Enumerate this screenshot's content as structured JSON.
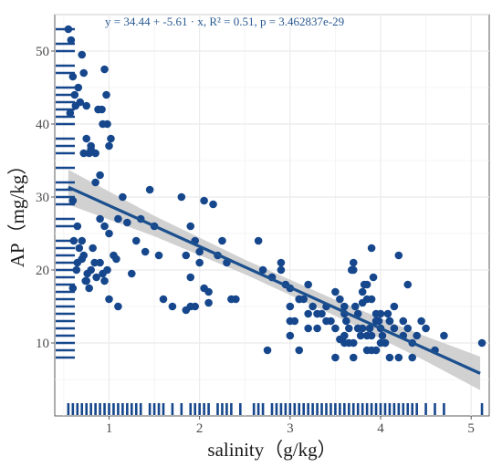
{
  "chart_data": {
    "type": "scatter",
    "title": "",
    "xlabel": "salinity（g/kg）",
    "ylabel": "AP（mg/kg）",
    "xlim": [
      0.4,
      5.2
    ],
    "ylim": [
      0,
      55
    ],
    "xticks": [
      1,
      2,
      3,
      4,
      5
    ],
    "yticks": [
      10,
      20,
      30,
      40,
      50
    ],
    "grid": true,
    "annotation": "y = 34.44 + -5.61 · x,   R² = 0.51,   p = 3.462837e-29",
    "colors": {
      "points": "#16478c",
      "fit_line": "#1b4f8e",
      "ci_band": "#c9c9c9",
      "grid": "#ebebeb",
      "rug": "#16478c"
    },
    "fit": {
      "intercept": 34.44,
      "slope": -5.61,
      "x_range": [
        0.55,
        5.1
      ]
    },
    "confidence_band_halfwidth": {
      "x": [
        0.55,
        1.5,
        2.5,
        3.5,
        4.5,
        5.1
      ],
      "halfwidth": [
        2.4,
        1.4,
        1.0,
        1.1,
        1.7,
        2.3
      ]
    },
    "points": {
      "x": [
        0.55,
        0.58,
        0.6,
        0.57,
        0.62,
        0.63,
        0.66,
        0.7,
        0.72,
        0.68,
        0.75,
        0.78,
        0.8,
        0.85,
        0.9,
        0.92,
        0.95,
        0.97,
        0.98,
        1.0,
        1.02,
        0.85,
        0.88,
        0.6,
        0.61,
        0.64,
        0.65,
        0.67,
        0.7,
        0.72,
        0.74,
        0.76,
        0.78,
        0.8,
        0.82,
        0.84,
        0.86,
        0.9,
        0.93,
        0.95,
        0.98,
        1.0,
        1.05,
        1.08,
        1.1,
        1.15,
        1.2,
        1.25,
        1.3,
        1.35,
        1.4,
        1.45,
        1.5,
        1.55,
        1.6,
        1.7,
        1.8,
        1.85,
        1.9,
        1.95,
        2.0,
        2.05,
        2.1,
        2.15,
        2.2,
        2.25,
        2.3,
        2.35,
        2.4,
        1.85,
        1.9,
        1.95,
        2.0,
        1.9,
        2.05,
        2.1,
        0.6,
        0.65,
        0.7,
        0.75,
        0.95,
        1.0,
        0.9,
        1.1,
        0.75,
        0.8,
        0.72,
        0.88,
        0.93,
        2.65,
        2.7,
        2.75,
        2.8,
        2.9,
        2.95,
        3.0,
        3.05,
        3.1,
        3.15,
        3.2,
        3.25,
        3.3,
        3.35,
        3.4,
        3.45,
        3.5,
        3.55,
        3.6,
        3.62,
        3.65,
        3.68,
        3.7,
        3.72,
        3.75,
        3.78,
        3.8,
        3.82,
        3.85,
        3.88,
        3.9,
        3.92,
        3.95,
        3.98,
        4.0,
        4.02,
        4.05,
        4.08,
        4.1,
        4.15,
        4.2,
        4.25,
        4.3,
        4.35,
        4.4,
        4.45,
        4.5,
        4.6,
        4.7,
        5.12,
        3.5,
        3.55,
        3.6,
        3.65,
        3.7,
        3.75,
        3.8,
        3.85,
        3.9,
        3.95,
        4.0,
        3.6,
        3.7,
        3.8,
        3.9,
        4.0,
        4.1,
        4.2,
        4.3,
        3.75,
        3.85,
        3.95,
        4.05,
        4.15,
        2.9,
        3.0,
        3.1,
        3.2,
        3.3,
        3.4,
        3.0,
        3.1,
        3.2,
        3.3,
        2.8,
        3.0,
        3.5,
        3.7,
        3.9,
        4.1,
        4.25,
        4.35,
        3.6,
        3.85
      ],
      "y": [
        53,
        51.5,
        46.5,
        41.5,
        44,
        42.5,
        45,
        49.5,
        47,
        43,
        38,
        36,
        37,
        32,
        33,
        42,
        47.5,
        44,
        40,
        37,
        38,
        36,
        42,
        29.5,
        24,
        20,
        21,
        23,
        21.5,
        22,
        18.5,
        19.5,
        17.5,
        20,
        23,
        21,
        19,
        21,
        19.5,
        26,
        20,
        16,
        22,
        21.5,
        27,
        30,
        26.5,
        19.5,
        24,
        27,
        22.5,
        31,
        26,
        22,
        16,
        15,
        30,
        22,
        26,
        24,
        22.5,
        17.5,
        15.5,
        29,
        22,
        24,
        21,
        16,
        16,
        14.5,
        15,
        15,
        21,
        19,
        29.5,
        17,
        17.5,
        26,
        24,
        18.5,
        18.5,
        25,
        27,
        15,
        42.5,
        36.5,
        36,
        42,
        40,
        24,
        20,
        9,
        19,
        21,
        18,
        17.5,
        13,
        9,
        16,
        14,
        15,
        14,
        14,
        15,
        13,
        12,
        16,
        14,
        13,
        12,
        20,
        21,
        15,
        14,
        11,
        15.5,
        18,
        16,
        12,
        23,
        19,
        14,
        13,
        12,
        11,
        10,
        14,
        13,
        12,
        22,
        13,
        12,
        10,
        11,
        13,
        12,
        9,
        11,
        10,
        8,
        10.5,
        11,
        10,
        10,
        12,
        12,
        9,
        11,
        13,
        14,
        15,
        20,
        17,
        16,
        10,
        13,
        8,
        18,
        12,
        11,
        9,
        10,
        15,
        20,
        13,
        16,
        12,
        14,
        13,
        15,
        16,
        18,
        12,
        19,
        11,
        17,
        8,
        9,
        8,
        11,
        8,
        10,
        18
      ]
    },
    "rug_x": [
      0.55,
      0.6,
      0.65,
      0.7,
      0.75,
      0.8,
      0.85,
      0.9,
      0.95,
      1.0,
      1.05,
      1.1,
      1.15,
      1.2,
      1.25,
      1.3,
      1.35,
      1.45,
      1.5,
      1.55,
      1.6,
      1.7,
      1.8,
      1.9,
      1.95,
      2.0,
      2.05,
      2.1,
      2.2,
      2.25,
      2.3,
      2.35,
      2.45,
      2.6,
      2.65,
      2.7,
      2.8,
      2.85,
      2.9,
      2.95,
      3.0,
      3.05,
      3.1,
      3.15,
      3.2,
      3.25,
      3.3,
      3.35,
      3.4,
      3.45,
      3.5,
      3.55,
      3.6,
      3.65,
      3.7,
      3.75,
      3.8,
      3.85,
      3.9,
      3.95,
      4.0,
      4.05,
      4.1,
      4.15,
      4.2,
      4.25,
      4.3,
      4.35,
      4.4,
      4.5,
      4.6,
      4.7,
      5.12
    ],
    "rug_y": [
      8,
      9,
      10,
      11,
      12,
      13,
      14,
      15,
      16,
      17,
      18,
      19,
      20,
      21,
      22,
      23,
      24,
      26,
      27,
      29,
      30,
      31,
      32,
      34,
      36,
      37,
      38,
      40,
      41,
      42,
      43,
      44,
      45,
      47,
      48,
      50,
      51,
      53
    ]
  }
}
